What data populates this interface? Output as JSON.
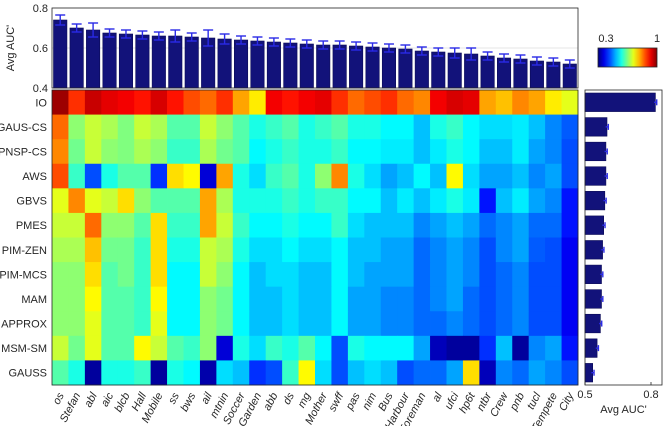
{
  "chart_data": [
    {
      "name": "top-bar",
      "type": "bar",
      "ylabel": "Avg AUC'",
      "ylim": [
        0.4,
        0.8
      ],
      "yticks": [
        "0.4",
        "0.6",
        "0.8"
      ],
      "categories": [
        "os",
        "Stefan",
        "abl",
        "aic",
        "blcb",
        "Hall",
        "Mobile",
        "ss",
        "bws",
        "ail",
        "mtnin",
        "Soccer",
        "Garden",
        "abb",
        "ds",
        "mg",
        "Mother",
        "swff",
        "pas",
        "nim",
        "Bus",
        "Harbour",
        "Foreman",
        "al",
        "ufci",
        "hp6t",
        "ntbr",
        "Crew",
        "pnb",
        "tucl",
        "Tempete",
        "City"
      ],
      "values": [
        0.74,
        0.7,
        0.69,
        0.675,
        0.67,
        0.665,
        0.66,
        0.66,
        0.655,
        0.65,
        0.645,
        0.64,
        0.635,
        0.63,
        0.625,
        0.62,
        0.615,
        0.615,
        0.61,
        0.605,
        0.6,
        0.595,
        0.585,
        0.58,
        0.575,
        0.57,
        0.56,
        0.55,
        0.545,
        0.535,
        0.53,
        0.52
      ],
      "errors": [
        0.025,
        0.02,
        0.035,
        0.02,
        0.02,
        0.02,
        0.02,
        0.03,
        0.02,
        0.04,
        0.025,
        0.02,
        0.02,
        0.02,
        0.02,
        0.02,
        0.02,
        0.02,
        0.02,
        0.02,
        0.02,
        0.02,
        0.02,
        0.02,
        0.025,
        0.03,
        0.02,
        0.02,
        0.02,
        0.02,
        0.02,
        0.02
      ]
    },
    {
      "name": "heatmap",
      "type": "heatmap",
      "rows": [
        "IO",
        "GAUS-CS",
        "PNSP-CS",
        "AWS",
        "GBVS",
        "PMES",
        "PIM-ZEN",
        "PIM-MCS",
        "MAM",
        "APPROX",
        "MSM-SM",
        "GAUSS"
      ],
      "columns": [
        "os",
        "Stefan",
        "abl",
        "aic",
        "blcb",
        "Hall",
        "Mobile",
        "ss",
        "bws",
        "ail",
        "mtnin",
        "Soccer",
        "Garden",
        "abb",
        "ds",
        "mg",
        "Mother",
        "swff",
        "pas",
        "nim",
        "Bus",
        "Harbour",
        "Foreman",
        "al",
        "ufci",
        "hp6t",
        "ntbr",
        "Crew",
        "pnb",
        "tucl",
        "Tempete",
        "City"
      ],
      "colorbar": {
        "min": 0.3,
        "max": 1,
        "labels": [
          "0.3",
          "1"
        ]
      },
      "values": [
        [
          0.98,
          0.88,
          0.95,
          0.93,
          0.92,
          0.9,
          0.94,
          0.9,
          0.86,
          0.84,
          0.88,
          0.8,
          0.75,
          0.92,
          0.9,
          0.92,
          0.93,
          0.88,
          0.84,
          0.86,
          0.88,
          0.84,
          0.82,
          0.92,
          0.94,
          0.93,
          0.8,
          0.78,
          0.82,
          0.8,
          0.75,
          0.72
        ],
        [
          0.84,
          0.66,
          0.7,
          0.68,
          0.65,
          0.7,
          0.68,
          0.62,
          0.62,
          0.7,
          0.66,
          0.62,
          0.58,
          0.6,
          0.62,
          0.58,
          0.6,
          0.62,
          0.58,
          0.58,
          0.56,
          0.56,
          0.52,
          0.58,
          0.6,
          0.56,
          0.54,
          0.54,
          0.55,
          0.52,
          0.48,
          0.45
        ],
        [
          0.82,
          0.64,
          0.7,
          0.66,
          0.65,
          0.68,
          0.66,
          0.6,
          0.6,
          0.68,
          0.64,
          0.62,
          0.56,
          0.58,
          0.6,
          0.58,
          0.58,
          0.6,
          0.56,
          0.56,
          0.55,
          0.55,
          0.52,
          0.55,
          0.58,
          0.56,
          0.52,
          0.52,
          0.55,
          0.5,
          0.48,
          0.44
        ],
        [
          0.86,
          0.6,
          0.44,
          0.58,
          0.62,
          0.62,
          0.42,
          0.76,
          0.74,
          0.36,
          0.8,
          0.58,
          0.54,
          0.6,
          0.62,
          0.58,
          0.66,
          0.82,
          0.58,
          0.54,
          0.5,
          0.52,
          0.56,
          0.52,
          0.74,
          0.54,
          0.5,
          0.5,
          0.52,
          0.48,
          0.5,
          0.44
        ],
        [
          0.72,
          0.82,
          0.72,
          0.7,
          0.76,
          0.66,
          0.62,
          0.62,
          0.62,
          0.8,
          0.68,
          0.58,
          0.58,
          0.58,
          0.6,
          0.58,
          0.6,
          0.6,
          0.56,
          0.56,
          0.52,
          0.55,
          0.52,
          0.55,
          0.58,
          0.55,
          0.4,
          0.52,
          0.55,
          0.5,
          0.48,
          0.4
        ],
        [
          0.7,
          0.7,
          0.84,
          0.66,
          0.66,
          0.62,
          0.76,
          0.6,
          0.6,
          0.8,
          0.7,
          0.6,
          0.56,
          0.56,
          0.58,
          0.56,
          0.56,
          0.6,
          0.54,
          0.52,
          0.52,
          0.52,
          0.48,
          0.5,
          0.52,
          0.5,
          0.46,
          0.48,
          0.5,
          0.46,
          0.46,
          0.4
        ],
        [
          0.68,
          0.68,
          0.78,
          0.64,
          0.64,
          0.6,
          0.76,
          0.58,
          0.58,
          0.7,
          0.68,
          0.58,
          0.54,
          0.54,
          0.56,
          0.54,
          0.54,
          0.56,
          0.52,
          0.52,
          0.5,
          0.5,
          0.46,
          0.48,
          0.5,
          0.48,
          0.44,
          0.48,
          0.5,
          0.45,
          0.44,
          0.38
        ],
        [
          0.66,
          0.66,
          0.76,
          0.62,
          0.64,
          0.6,
          0.76,
          0.56,
          0.56,
          0.7,
          0.66,
          0.56,
          0.52,
          0.54,
          0.54,
          0.52,
          0.52,
          0.56,
          0.52,
          0.5,
          0.5,
          0.5,
          0.46,
          0.48,
          0.5,
          0.48,
          0.44,
          0.46,
          0.48,
          0.44,
          0.44,
          0.38
        ],
        [
          0.66,
          0.66,
          0.74,
          0.62,
          0.62,
          0.6,
          0.74,
          0.56,
          0.56,
          0.66,
          0.64,
          0.56,
          0.52,
          0.52,
          0.54,
          0.52,
          0.52,
          0.56,
          0.5,
          0.5,
          0.48,
          0.48,
          0.46,
          0.48,
          0.5,
          0.46,
          0.44,
          0.46,
          0.48,
          0.44,
          0.44,
          0.38
        ],
        [
          0.66,
          0.66,
          0.72,
          0.62,
          0.62,
          0.6,
          0.72,
          0.56,
          0.56,
          0.66,
          0.64,
          0.56,
          0.52,
          0.52,
          0.54,
          0.52,
          0.52,
          0.56,
          0.5,
          0.5,
          0.48,
          0.48,
          0.46,
          0.46,
          0.48,
          0.46,
          0.44,
          0.46,
          0.48,
          0.44,
          0.44,
          0.38
        ],
        [
          0.7,
          0.64,
          0.72,
          0.62,
          0.62,
          0.74,
          0.7,
          0.62,
          0.6,
          0.66,
          0.36,
          0.58,
          0.54,
          0.6,
          0.58,
          0.62,
          0.56,
          0.44,
          0.58,
          0.56,
          0.56,
          0.56,
          0.5,
          0.34,
          0.32,
          0.32,
          0.42,
          0.52,
          0.32,
          0.48,
          0.5,
          0.4
        ],
        [
          0.62,
          0.58,
          0.32,
          0.58,
          0.58,
          0.6,
          0.32,
          0.58,
          0.56,
          0.33,
          0.54,
          0.52,
          0.42,
          0.44,
          0.6,
          0.74,
          0.54,
          0.44,
          0.52,
          0.54,
          0.52,
          0.44,
          0.46,
          0.46,
          0.5,
          0.76,
          0.34,
          0.48,
          0.46,
          0.5,
          0.48,
          0.44
        ]
      ]
    },
    {
      "name": "side-bar",
      "type": "bar",
      "orientation": "horizontal",
      "xlabel": "Avg AUC'",
      "xlim": [
        0.5,
        0.85
      ],
      "xticks": [
        "0.5",
        "0.8"
      ],
      "categories": [
        "IO",
        "GAUS-CS",
        "PNSP-CS",
        "AWS",
        "GBVS",
        "PMES",
        "PIM-ZEN",
        "PIM-MCS",
        "MAM",
        "APPROX",
        "MSM-SM",
        "GAUSS"
      ],
      "values": [
        0.82,
        0.6,
        0.595,
        0.595,
        0.59,
        0.585,
        0.58,
        0.575,
        0.575,
        0.57,
        0.555,
        0.535
      ],
      "errors": [
        0.006,
        0.006,
        0.006,
        0.006,
        0.006,
        0.006,
        0.006,
        0.006,
        0.006,
        0.006,
        0.006,
        0.006
      ]
    }
  ]
}
